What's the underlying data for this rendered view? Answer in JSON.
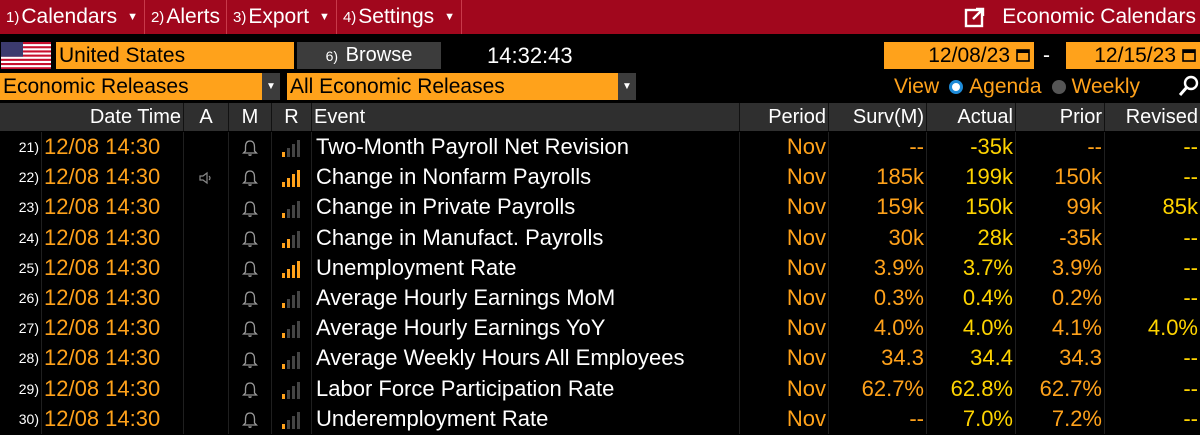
{
  "menu": {
    "items": [
      {
        "num": "1)",
        "label": "Calendars"
      },
      {
        "num": "2)",
        "label": "Alerts"
      },
      {
        "num": "3)",
        "label": "Export"
      },
      {
        "num": "4)",
        "label": "Settings"
      }
    ],
    "right_title": "Economic Calendars"
  },
  "toolbar": {
    "country": "United States",
    "browse_num": "6)",
    "browse_label": "Browse",
    "clock": "14:32:43",
    "date_from": "12/08/23",
    "date_sep": "-",
    "date_to": "12/15/23",
    "release_type": "Economic Releases",
    "release_filter": "All Economic Releases",
    "view_label": "View",
    "view_options": [
      "Agenda",
      "Weekly"
    ],
    "view_selected": "Agenda"
  },
  "table": {
    "headers": {
      "datetime": "Date Time",
      "a": "A",
      "m": "M",
      "r": "R",
      "event": "Event",
      "period": "Period",
      "surv": "Surv(M)",
      "actual": "Actual",
      "prior": "Prior",
      "revised": "Revised"
    },
    "rows": [
      {
        "idx": "21)",
        "datetime": "12/08 14:30",
        "alert": false,
        "relevance": 1,
        "event": "Two-Month Payroll Net Revision",
        "period": "Nov",
        "surv": "--",
        "actual": "-35k",
        "prior": "--",
        "revised": "--"
      },
      {
        "idx": "22)",
        "datetime": "12/08 14:30",
        "alert": true,
        "relevance": 4,
        "event": "Change in Nonfarm Payrolls",
        "period": "Nov",
        "surv": "185k",
        "actual": "199k",
        "prior": "150k",
        "revised": "--"
      },
      {
        "idx": "23)",
        "datetime": "12/08 14:30",
        "alert": false,
        "relevance": 1,
        "event": "Change in Private Payrolls",
        "period": "Nov",
        "surv": "159k",
        "actual": "150k",
        "prior": "99k",
        "revised": "85k"
      },
      {
        "idx": "24)",
        "datetime": "12/08 14:30",
        "alert": false,
        "relevance": 2,
        "event": "Change in Manufact. Payrolls",
        "period": "Nov",
        "surv": "30k",
        "actual": "28k",
        "prior": "-35k",
        "revised": "--"
      },
      {
        "idx": "25)",
        "datetime": "12/08 14:30",
        "alert": false,
        "relevance": 4,
        "event": "Unemployment Rate",
        "period": "Nov",
        "surv": "3.9%",
        "actual": "3.7%",
        "prior": "3.9%",
        "revised": "--"
      },
      {
        "idx": "26)",
        "datetime": "12/08 14:30",
        "alert": false,
        "relevance": 1,
        "event": "Average Hourly Earnings MoM",
        "period": "Nov",
        "surv": "0.3%",
        "actual": "0.4%",
        "prior": "0.2%",
        "revised": "--"
      },
      {
        "idx": "27)",
        "datetime": "12/08 14:30",
        "alert": false,
        "relevance": 1,
        "event": "Average Hourly Earnings YoY",
        "period": "Nov",
        "surv": "4.0%",
        "actual": "4.0%",
        "prior": "4.1%",
        "revised": "4.0%"
      },
      {
        "idx": "28)",
        "datetime": "12/08 14:30",
        "alert": false,
        "relevance": 1,
        "event": "Average Weekly Hours All Employees",
        "period": "Nov",
        "surv": "34.3",
        "actual": "34.4",
        "prior": "34.3",
        "revised": "--"
      },
      {
        "idx": "29)",
        "datetime": "12/08 14:30",
        "alert": false,
        "relevance": 1,
        "event": "Labor Force Participation Rate",
        "period": "Nov",
        "surv": "62.7%",
        "actual": "62.8%",
        "prior": "62.7%",
        "revised": "--"
      },
      {
        "idx": "30)",
        "datetime": "12/08 14:30",
        "alert": false,
        "relevance": 1,
        "event": "Underemployment Rate",
        "period": "Nov",
        "surv": "--",
        "actual": "7.0%",
        "prior": "7.2%",
        "revised": "--"
      }
    ]
  },
  "colors": {
    "menu_bar": "#a1071d",
    "amber": "#ffa21b",
    "actual_yellow": "#ffd400",
    "header_bg": "#2f2f2f",
    "radio_blue": "#1e8bd8"
  },
  "icons": {
    "external": "external-link-icon",
    "calendar": "calendar-icon",
    "bell": "bell-icon",
    "speaker": "speaker-icon",
    "relevance": "relevance-bars-icon",
    "zoom": "zoom-icon",
    "flag": "us-flag-icon"
  }
}
